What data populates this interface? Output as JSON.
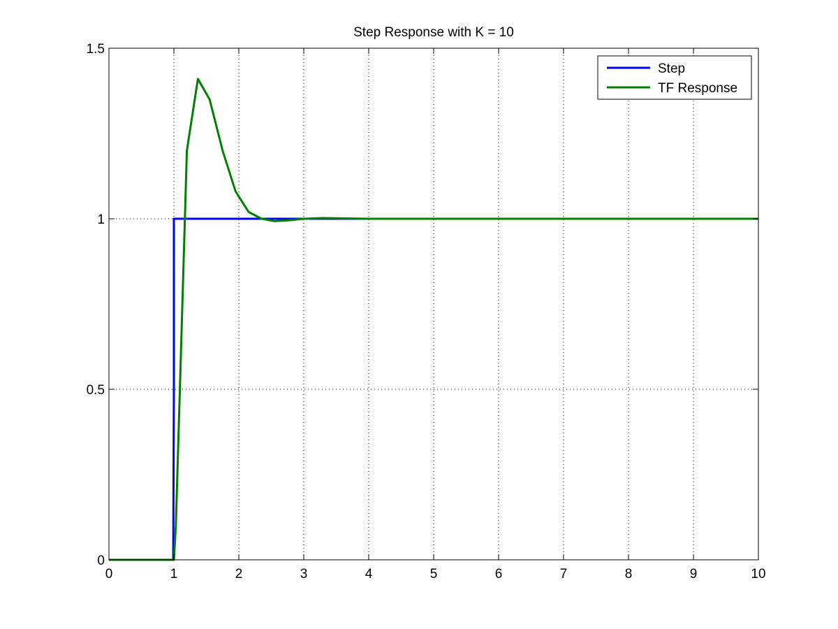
{
  "chart_data": {
    "type": "line",
    "title": "Step Response with K = 10",
    "xlabel": "",
    "ylabel": "",
    "xlim": [
      0,
      10
    ],
    "ylim": [
      0,
      1.5
    ],
    "xticks": [
      "0",
      "1",
      "2",
      "3",
      "4",
      "5",
      "6",
      "7",
      "8",
      "9",
      "10"
    ],
    "yticks": [
      "0",
      "0.5",
      "1",
      "1.5"
    ],
    "xtick_values": [
      0,
      1,
      2,
      3,
      4,
      5,
      6,
      7,
      8,
      9,
      10
    ],
    "ytick_values": [
      0,
      0.5,
      1,
      1.5
    ],
    "grid": true,
    "legend": "top-right",
    "series": [
      {
        "name": "Step",
        "color": "#0000ff",
        "points": [
          [
            0,
            0
          ],
          [
            0.99,
            0
          ],
          [
            1.0,
            0.5
          ],
          [
            1.0,
            1.0
          ],
          [
            10,
            1.0
          ]
        ]
      },
      {
        "name": "TF Response",
        "color": "#008000",
        "points": [
          [
            0,
            0
          ],
          [
            1.0,
            0
          ],
          [
            1.03,
            0.1
          ],
          [
            1.1,
            0.55
          ],
          [
            1.2,
            1.2
          ],
          [
            1.37,
            1.41
          ],
          [
            1.55,
            1.35
          ],
          [
            1.75,
            1.2
          ],
          [
            1.95,
            1.08
          ],
          [
            2.15,
            1.02
          ],
          [
            2.35,
            1.0
          ],
          [
            2.55,
            0.993
          ],
          [
            2.8,
            0.996
          ],
          [
            3.0,
            1.0
          ],
          [
            3.3,
            1.002
          ],
          [
            4.0,
            1.0
          ],
          [
            10,
            1.0
          ]
        ]
      }
    ]
  }
}
